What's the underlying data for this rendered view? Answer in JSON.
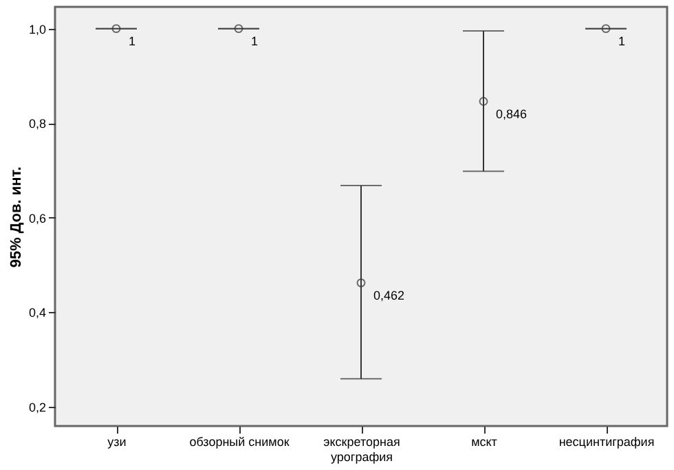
{
  "chart_data": {
    "type": "scatter",
    "ylabel": "95% Дов. инт.",
    "categories": [
      "узи",
      "обзорный снимок",
      "экскреторная урография",
      "мскт",
      "несцинтиграфия"
    ],
    "values": [
      1,
      1,
      0.462,
      0.846,
      1
    ],
    "errors": [
      [
        1,
        1
      ],
      [
        1,
        1
      ],
      [
        0.259,
        0.668
      ],
      [
        0.698,
        0.995
      ],
      [
        1,
        1
      ]
    ],
    "value_labels": [
      "1",
      "1",
      "0,462",
      "0,846",
      "1"
    ],
    "color": "#333333",
    "marker": "circle",
    "ylim": [
      0.159,
      1.046
    ],
    "yticks": [
      {
        "value": 0.2,
        "label": "0,2"
      },
      {
        "value": 0.4,
        "label": "0,4"
      },
      {
        "value": 0.6,
        "label": "0,6"
      },
      {
        "value": 0.8,
        "label": "0,8"
      },
      {
        "value": 1.0,
        "label": "1,0"
      }
    ],
    "grid": false
  }
}
